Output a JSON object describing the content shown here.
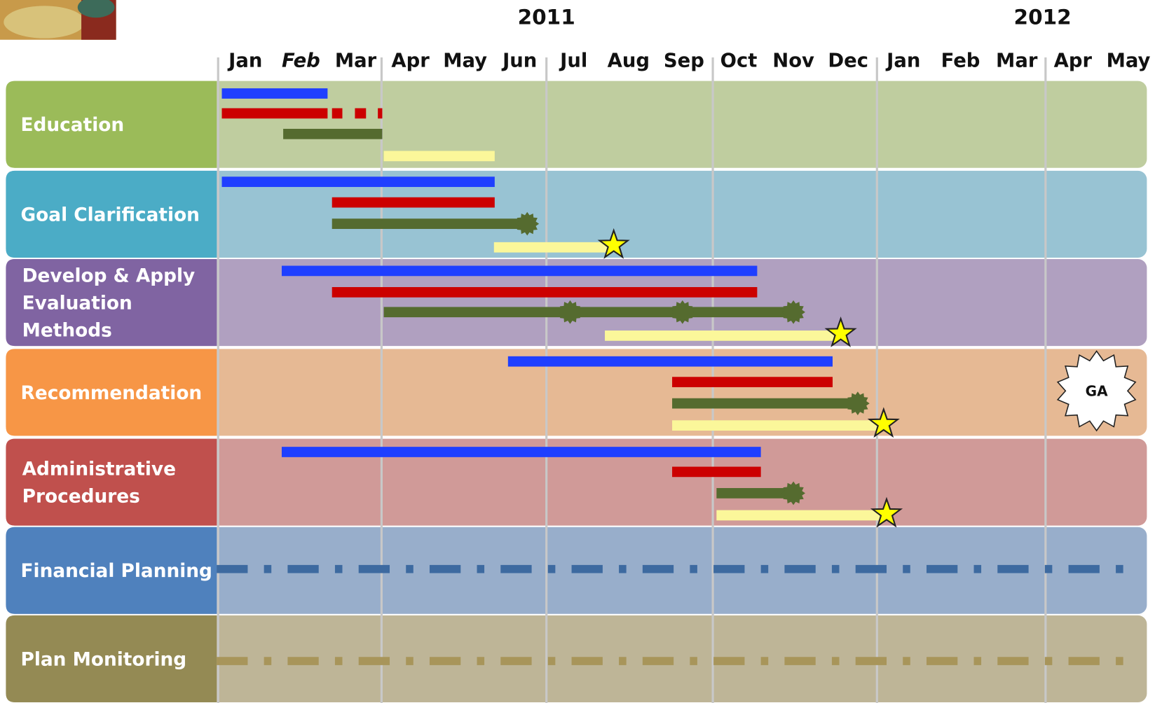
{
  "header": {
    "years": [
      "2011",
      "2012"
    ],
    "months": [
      "Jan",
      "Feb",
      "Mar",
      "Apr",
      "May",
      "Jun",
      "Jul",
      "Aug",
      "Sep",
      "Oct",
      "Nov",
      "Dec",
      "Jan",
      "Feb",
      "Mar",
      "Apr",
      "May"
    ]
  },
  "rows": [
    {
      "label": [
        "Education"
      ]
    },
    {
      "label": [
        "Goal Clarification"
      ]
    },
    {
      "label": [
        "Develop & Apply",
        "Evaluation",
        "Methods"
      ]
    },
    {
      "label": [
        "Recommendation"
      ]
    },
    {
      "label": [
        "Administrative",
        "Procedures"
      ]
    },
    {
      "label": [
        "Financial Planning"
      ]
    },
    {
      "label": [
        "Plan Monitoring"
      ]
    }
  ],
  "badge": "GA"
}
